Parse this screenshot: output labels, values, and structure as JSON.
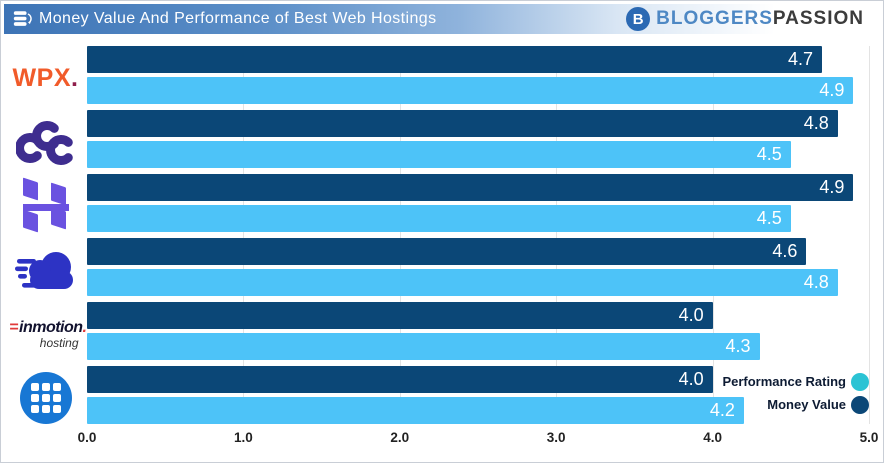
{
  "header": {
    "title": "Money Value And Performance of Best Web Hostings",
    "brand": {
      "initial": "B",
      "first": "BLOGGERS",
      "second": "PASSION"
    }
  },
  "icons": {
    "header_icon": "database-sync-icon",
    "brand_icon": "b-circle-icon",
    "hosting_logos": [
      "wpx-logo",
      "chemicloud-logo",
      "hostinger-logo",
      "fastcomet-logo",
      "inmotion-hosting-logo",
      "grid-hosting-logo"
    ]
  },
  "logos": {
    "wpx": {
      "text": "WPX",
      "dot": "."
    },
    "inmotion": {
      "line1": "inmotion",
      "eq": "=",
      "dot": ".",
      "line2": "hosting"
    }
  },
  "legend": {
    "entries": [
      {
        "label": "Performance Rating",
        "marker_color": "#2bc3d4"
      },
      {
        "label": "Money Value",
        "marker_color": "#0b4777"
      }
    ]
  },
  "chart_data": {
    "type": "bar",
    "orientation": "horizontal",
    "title": "Money Value And Performance of Best Web Hostings",
    "categories": [
      "WPX",
      "ChemiCloud",
      "Hostinger",
      "FastComet",
      "InMotion Hosting",
      "Unknown (grid logo)"
    ],
    "series": [
      {
        "name": "Money Value",
        "color": "#0b4777",
        "values": [
          4.7,
          4.8,
          4.9,
          4.6,
          4.0,
          4.0
        ]
      },
      {
        "name": "Performance Rating",
        "color": "#4dc3f8",
        "values": [
          4.9,
          4.5,
          4.5,
          4.8,
          4.3,
          4.2
        ]
      }
    ],
    "xlim": [
      0,
      5
    ],
    "x_ticks": [
      "0.0",
      "1.0",
      "2.0",
      "3.0",
      "4.0",
      "5.0"
    ],
    "value_labels": true,
    "grid": "vertical-gridlines",
    "legend_position": "bottom-right"
  }
}
